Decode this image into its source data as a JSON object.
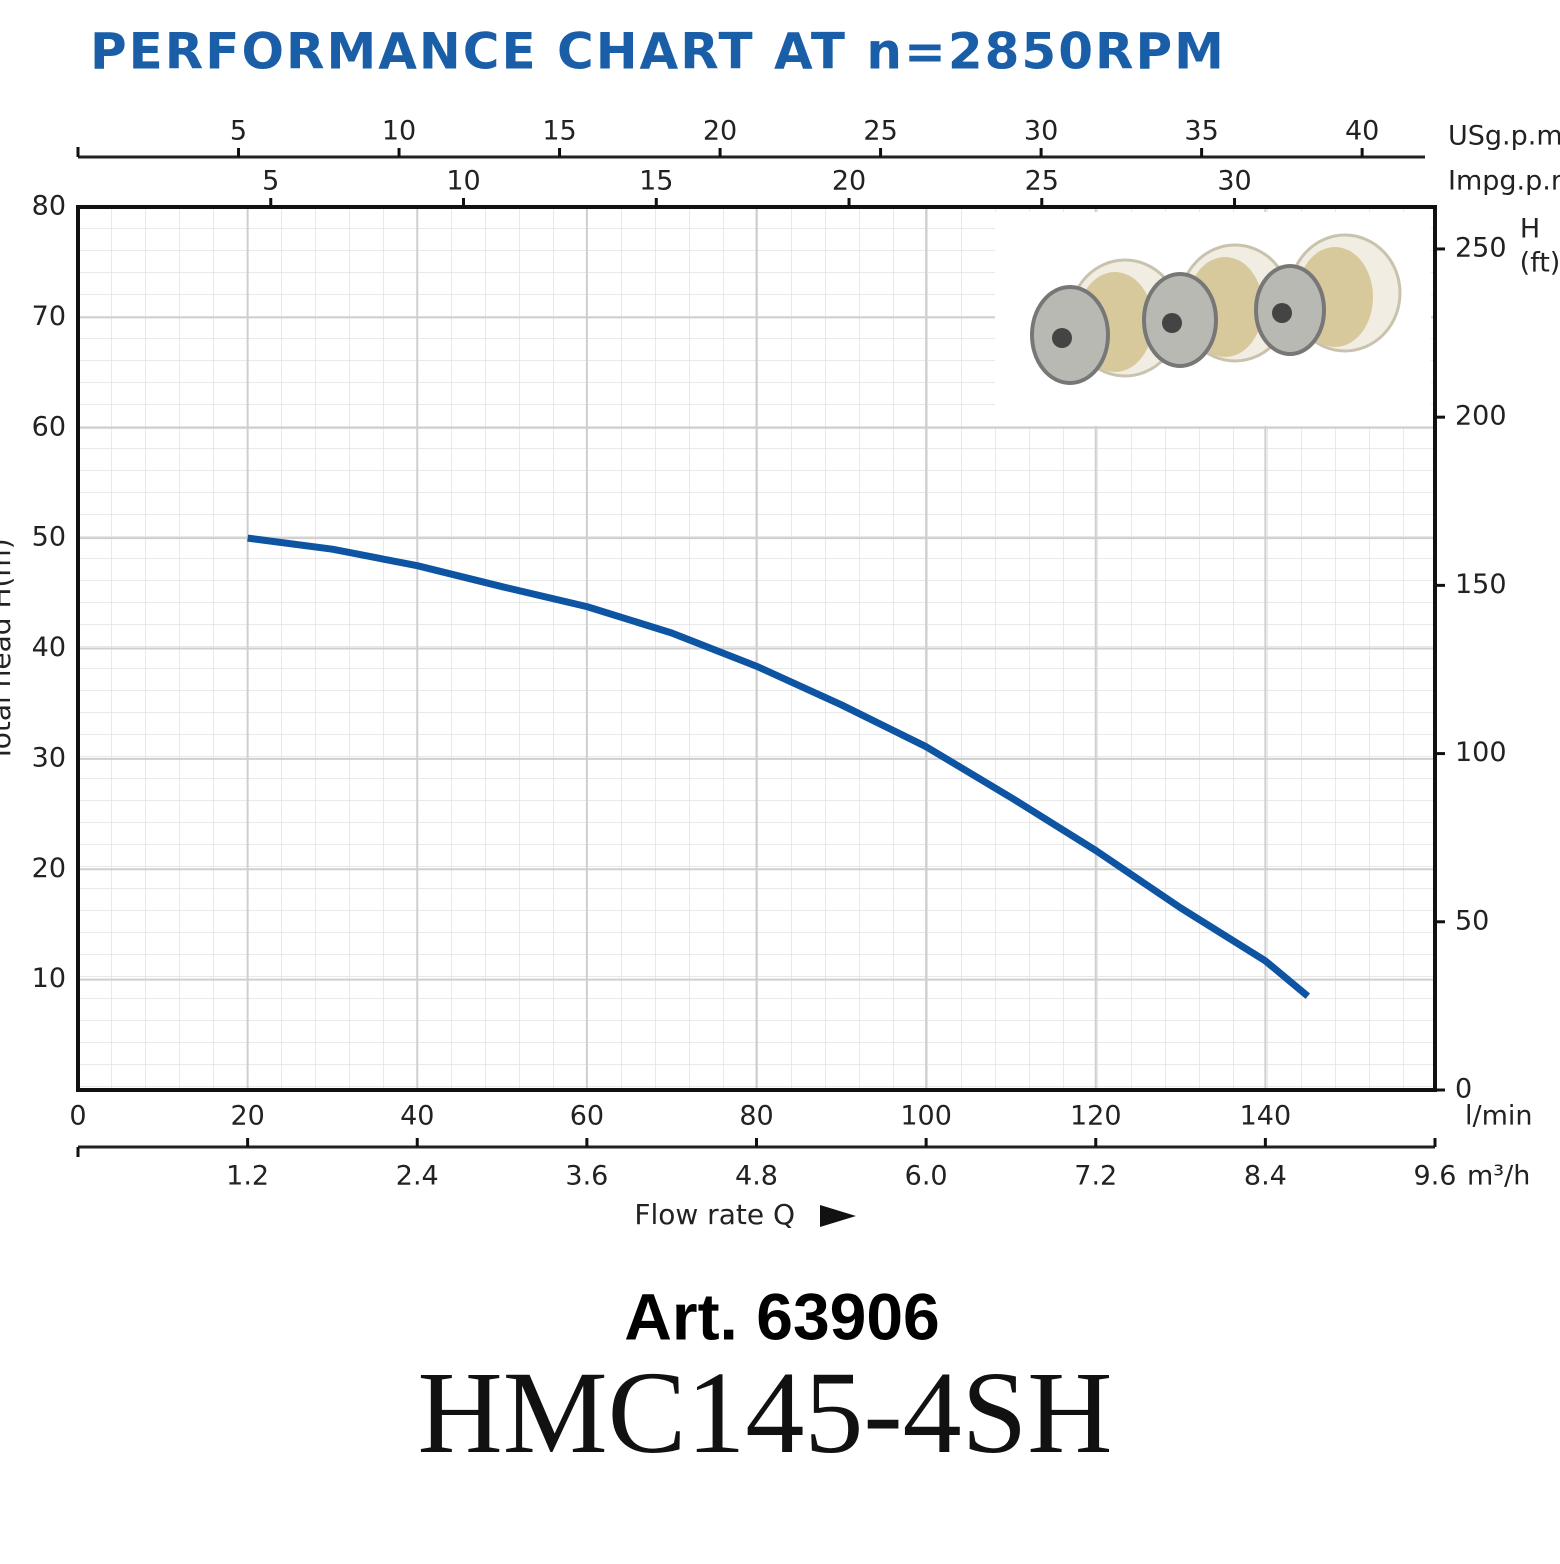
{
  "chart_data": {
    "type": "line",
    "title": "PERFORMANCE CHART AT n=2850RPM",
    "xlabel": "Flow rate Q",
    "ylabel": "Total head H(m)",
    "x_unit": "l/min",
    "x": [
      20,
      30,
      40,
      50,
      60,
      70,
      80,
      90,
      100,
      110,
      120,
      130,
      140,
      145
    ],
    "values": [
      50,
      49,
      47.5,
      45.6,
      43.8,
      41.4,
      38.4,
      34.9,
      31.1,
      26.5,
      21.7,
      16.5,
      11.7,
      8.5
    ],
    "color": "#0d54a3",
    "xlim": [
      0,
      160
    ],
    "xticks": [
      0,
      20,
      40,
      60,
      80,
      100,
      120,
      140
    ],
    "ylim": [
      0,
      80
    ],
    "yticks": [
      10,
      20,
      30,
      40,
      50,
      60,
      70,
      80
    ],
    "y2label": [
      "H",
      "(ft)"
    ],
    "y2lim": [
      0,
      262.47
    ],
    "y2ticks": [
      0,
      50,
      100,
      150,
      200,
      250
    ],
    "grid": true,
    "secondary_x_axes": [
      {
        "position": "bottom",
        "unit": "m³/h",
        "lim": [
          0,
          9.6
        ],
        "ticks": [
          1.2,
          2.4,
          3.6,
          4.8,
          {
            "value": 6,
            "label": "6.0"
          },
          7.2,
          8.4,
          9.6
        ]
      },
      {
        "position": "top",
        "unit": "USg.p.m.",
        "lim": [
          0,
          42.27
        ],
        "ticks": [
          5,
          10,
          15,
          20,
          25,
          30,
          35,
          40
        ]
      },
      {
        "position": "top-inner",
        "unit": "Impg.p.m.",
        "lim": [
          0,
          35.2
        ],
        "ticks": [
          5,
          10,
          15,
          20,
          25,
          30
        ]
      }
    ]
  },
  "article": "Art. 63906",
  "model": "HMC145-4SH"
}
